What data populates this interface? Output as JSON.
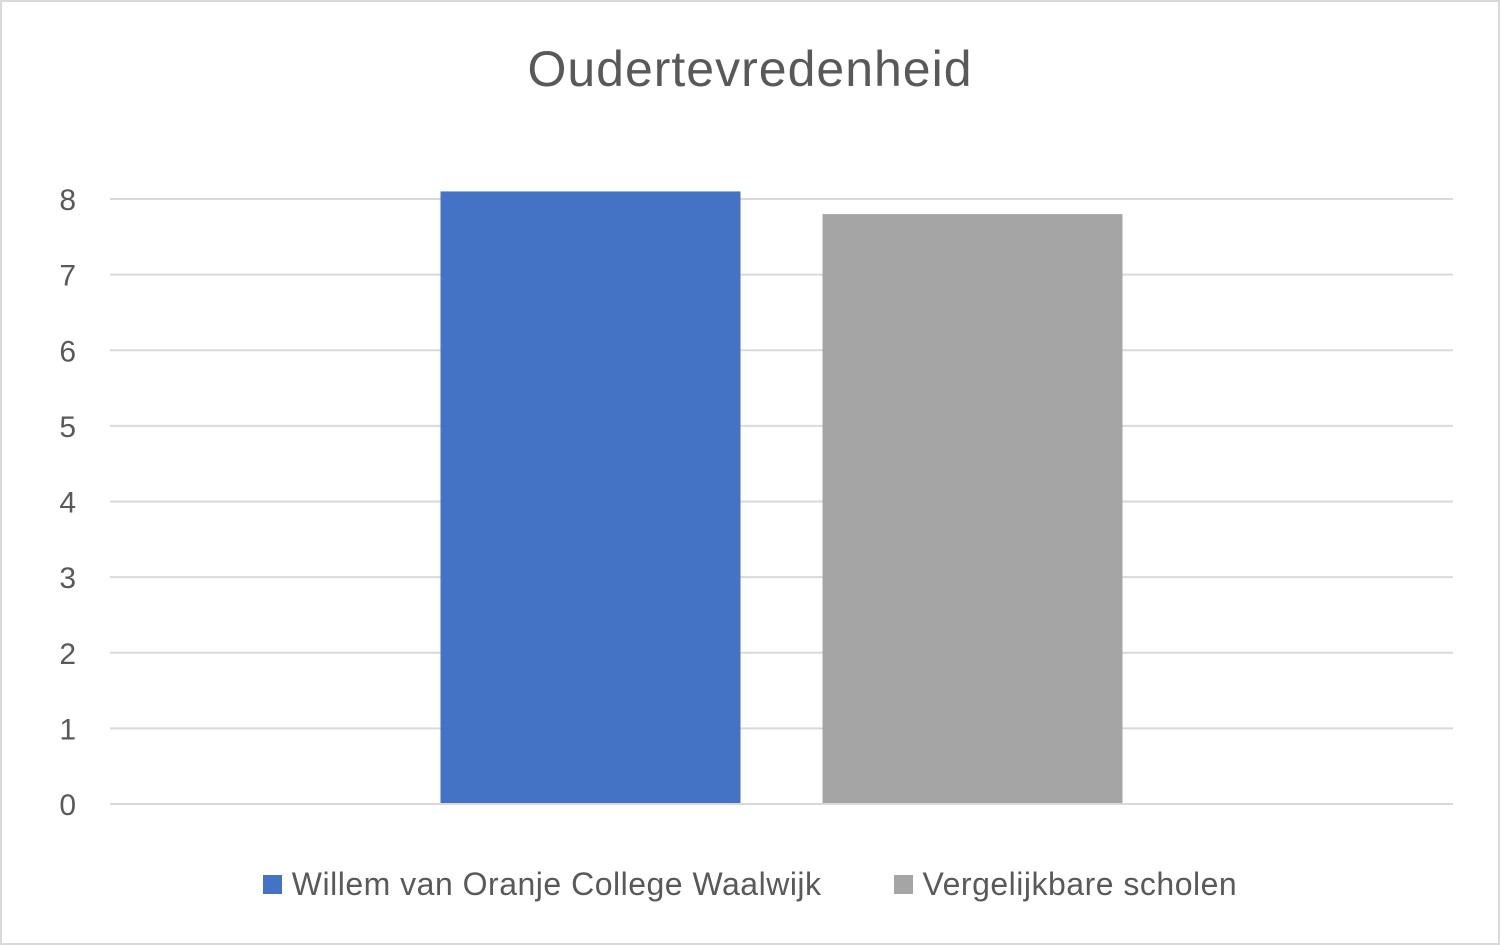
{
  "chart_data": {
    "type": "bar",
    "title": "Oudertevredenheid",
    "xlabel": "",
    "ylabel": "",
    "categories": [
      ""
    ],
    "ylim": [
      0,
      8
    ],
    "yticks": [
      0,
      1,
      2,
      3,
      4,
      5,
      6,
      7,
      8
    ],
    "grid": true,
    "legend_position": "bottom",
    "series": [
      {
        "name": "Willem van Oranje College Waalwijk",
        "values": [
          8.1
        ],
        "color": "#4472c4"
      },
      {
        "name": "Vergelijkbare scholen",
        "values": [
          7.8
        ],
        "color": "#a5a5a5"
      }
    ]
  }
}
